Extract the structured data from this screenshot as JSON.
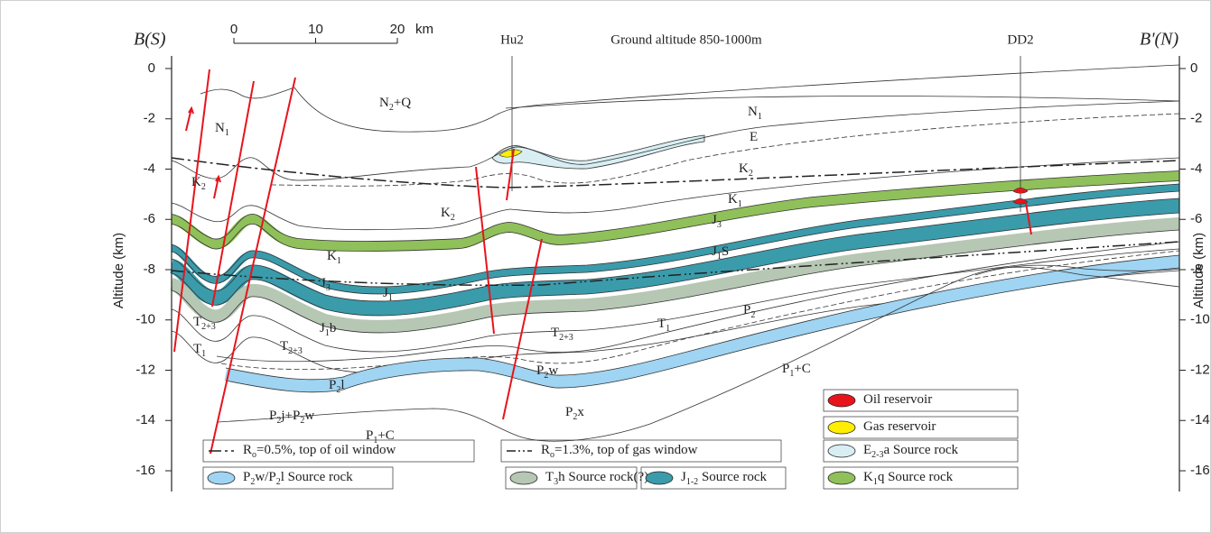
{
  "header": {
    "left_end": "B(S)",
    "right_end": "B'(N)",
    "ground_altitude": "Ground altitude 850-1000m"
  },
  "wells": [
    {
      "name": "Hu2"
    },
    {
      "name": "DD2"
    }
  ],
  "scale_bar": {
    "ticks": [
      0,
      10,
      20
    ],
    "unit": "km"
  },
  "left_axis": {
    "label": "Altitude (km)",
    "ticks": [
      0,
      -2,
      -4,
      -6,
      -8,
      -10,
      -12,
      -14,
      -16
    ]
  },
  "right_axis": {
    "label": "Altitude (km)",
    "ticks": [
      0,
      -2,
      -4,
      -6,
      -8,
      -10,
      -12,
      -14,
      -16
    ]
  },
  "formations": [
    {
      "label": [
        "N",
        "2",
        "+Q"
      ]
    },
    {
      "label": [
        "N",
        "1"
      ]
    },
    {
      "label": [
        "N",
        "1"
      ]
    },
    {
      "label": [
        "E"
      ]
    },
    {
      "label": [
        "K",
        "2"
      ]
    },
    {
      "label": [
        "K",
        "2"
      ]
    },
    {
      "label": [
        "K",
        "2"
      ]
    },
    {
      "label": [
        "K",
        "1"
      ]
    },
    {
      "label": [
        "K",
        "1"
      ]
    },
    {
      "label": [
        "J",
        "3"
      ]
    },
    {
      "label": [
        "J",
        "3"
      ]
    },
    {
      "label": [
        "J",
        "1",
        "S"
      ]
    },
    {
      "label": [
        "J",
        "1"
      ]
    },
    {
      "label": [
        "J",
        "1",
        "b"
      ]
    },
    {
      "label": [
        "T",
        "2+3"
      ]
    },
    {
      "label": [
        "T",
        "1"
      ]
    },
    {
      "label": [
        "T",
        "2+3"
      ]
    },
    {
      "label": [
        "T",
        "2+3"
      ]
    },
    {
      "label": [
        "T",
        "1"
      ]
    },
    {
      "label": [
        "P",
        "2"
      ]
    },
    {
      "label": [
        "P",
        "2",
        "l"
      ]
    },
    {
      "label": [
        "P",
        "2",
        "w"
      ]
    },
    {
      "label": [
        "P",
        "1",
        "+C"
      ]
    },
    {
      "label": [
        "P",
        "2",
        "j+P",
        "2",
        "w"
      ]
    },
    {
      "label": [
        "P",
        "2",
        "x"
      ]
    },
    {
      "label": [
        "P",
        "1",
        "+C"
      ]
    }
  ],
  "legend": [
    {
      "label": [
        "Oil reservoir"
      ]
    },
    {
      "label": [
        "Gas reservoir"
      ]
    },
    {
      "label": [
        "R",
        "o",
        "=0.5%, top of oil window"
      ]
    },
    {
      "label": [
        "R",
        "o",
        "=1.3%, top of gas window"
      ]
    },
    {
      "label": [
        "E",
        "2-3",
        "a Source rock"
      ]
    },
    {
      "label": [
        "P",
        "2",
        "w/P",
        "2",
        "l Source rock"
      ]
    },
    {
      "label": [
        "T",
        "3",
        "h Source rock(?)"
      ]
    },
    {
      "label": [
        "J",
        "1-2",
        " Source rock"
      ]
    },
    {
      "label": [
        "K",
        "1",
        "q Source rock"
      ]
    }
  ]
}
